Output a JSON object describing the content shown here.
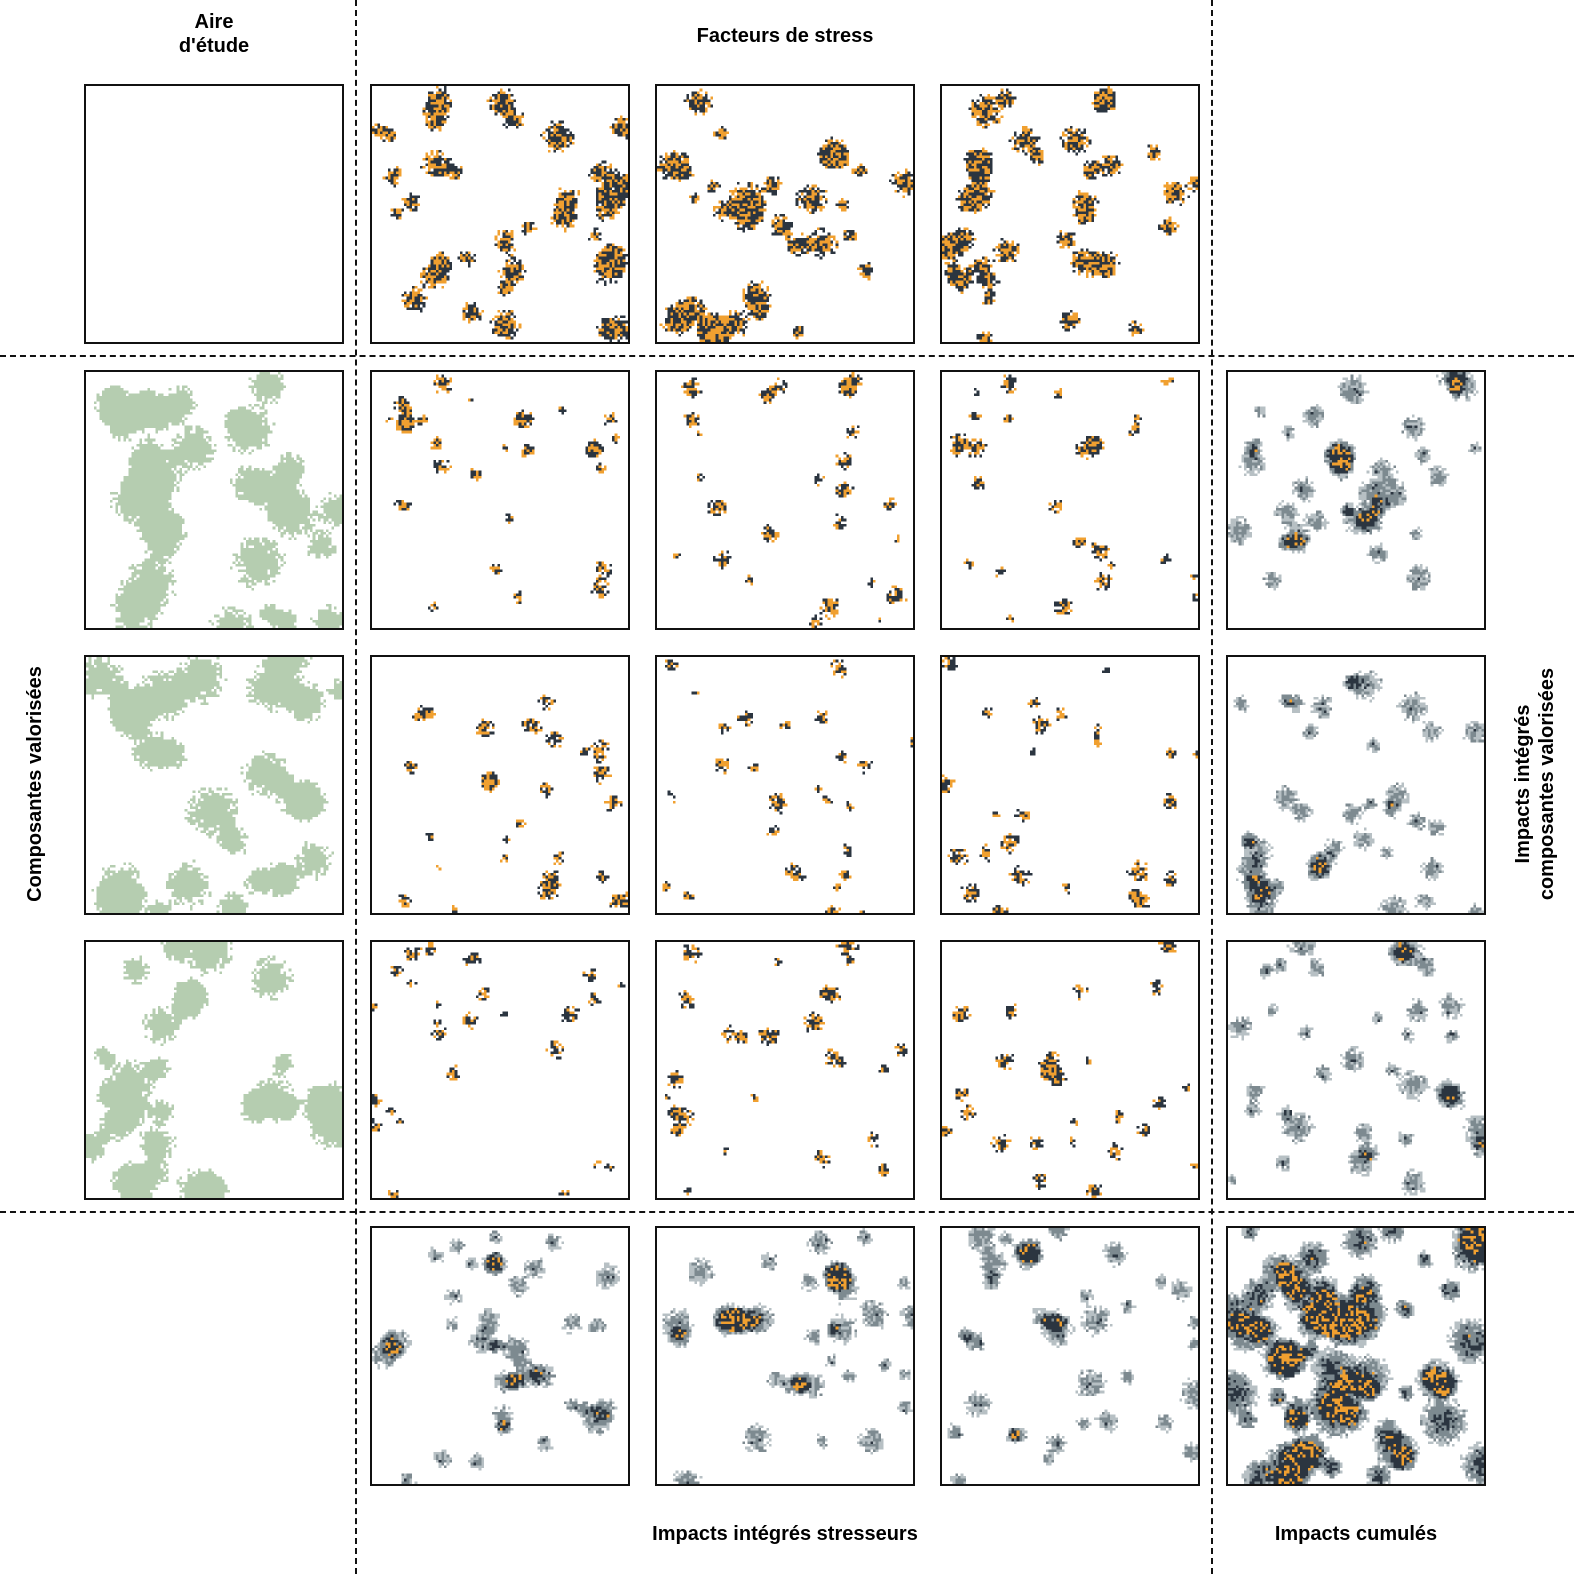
{
  "labels": {
    "aire": "Aire\nd'étude",
    "facteurs": "Facteurs de stress",
    "composantes": "Composantes valorisées",
    "impacts_cv": "Impacts intégrés\ncomposantes valorisées",
    "impacts_stresseurs": "Impacts intégrés stresseurs",
    "impacts_cumules": "Impacts cumulés"
  },
  "colors": {
    "habitat_green": "#b5cdb0",
    "stress_orange": "#f0a030",
    "stress_dark": "#2b3540",
    "gray_light": "#b7c0c4",
    "gray_mid": "#7d8a90",
    "frame": "#111111"
  },
  "grid": {
    "rows": [
      {
        "name": "facteurs-de-stress",
        "panels": [
          "aire-etude",
          "stress",
          "stress",
          "stress"
        ]
      },
      {
        "name": "composante-1",
        "panels": [
          "composante",
          "impact",
          "impact",
          "impact",
          "cumul-cv"
        ]
      },
      {
        "name": "composante-2",
        "panels": [
          "composante",
          "impact",
          "impact",
          "impact",
          "cumul-cv"
        ]
      },
      {
        "name": "composante-3",
        "panels": [
          "composante",
          "impact",
          "impact",
          "impact",
          "cumul-cv"
        ]
      },
      {
        "name": "impacts-stresseurs",
        "panels": [
          "cumul-st",
          "cumul-st",
          "cumul-st",
          "cumul-total"
        ]
      }
    ]
  }
}
